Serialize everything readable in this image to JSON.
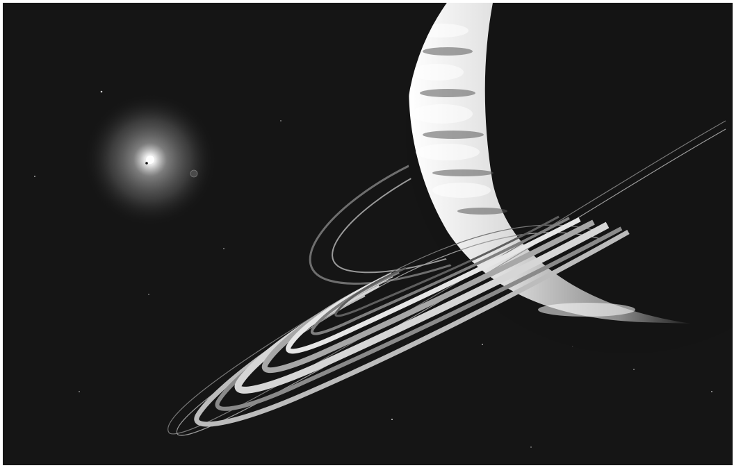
{
  "image": {
    "subject": "saturn-ringed-planet-with-distant-sun",
    "palette": {
      "space": "#141414",
      "ring_light": "#d8d8d8",
      "ring_mid": "#8c8c8c",
      "planet_light": "#efefef",
      "planet_dark": "#1a1a1a",
      "sun_glow": "#bdbdbd"
    }
  }
}
